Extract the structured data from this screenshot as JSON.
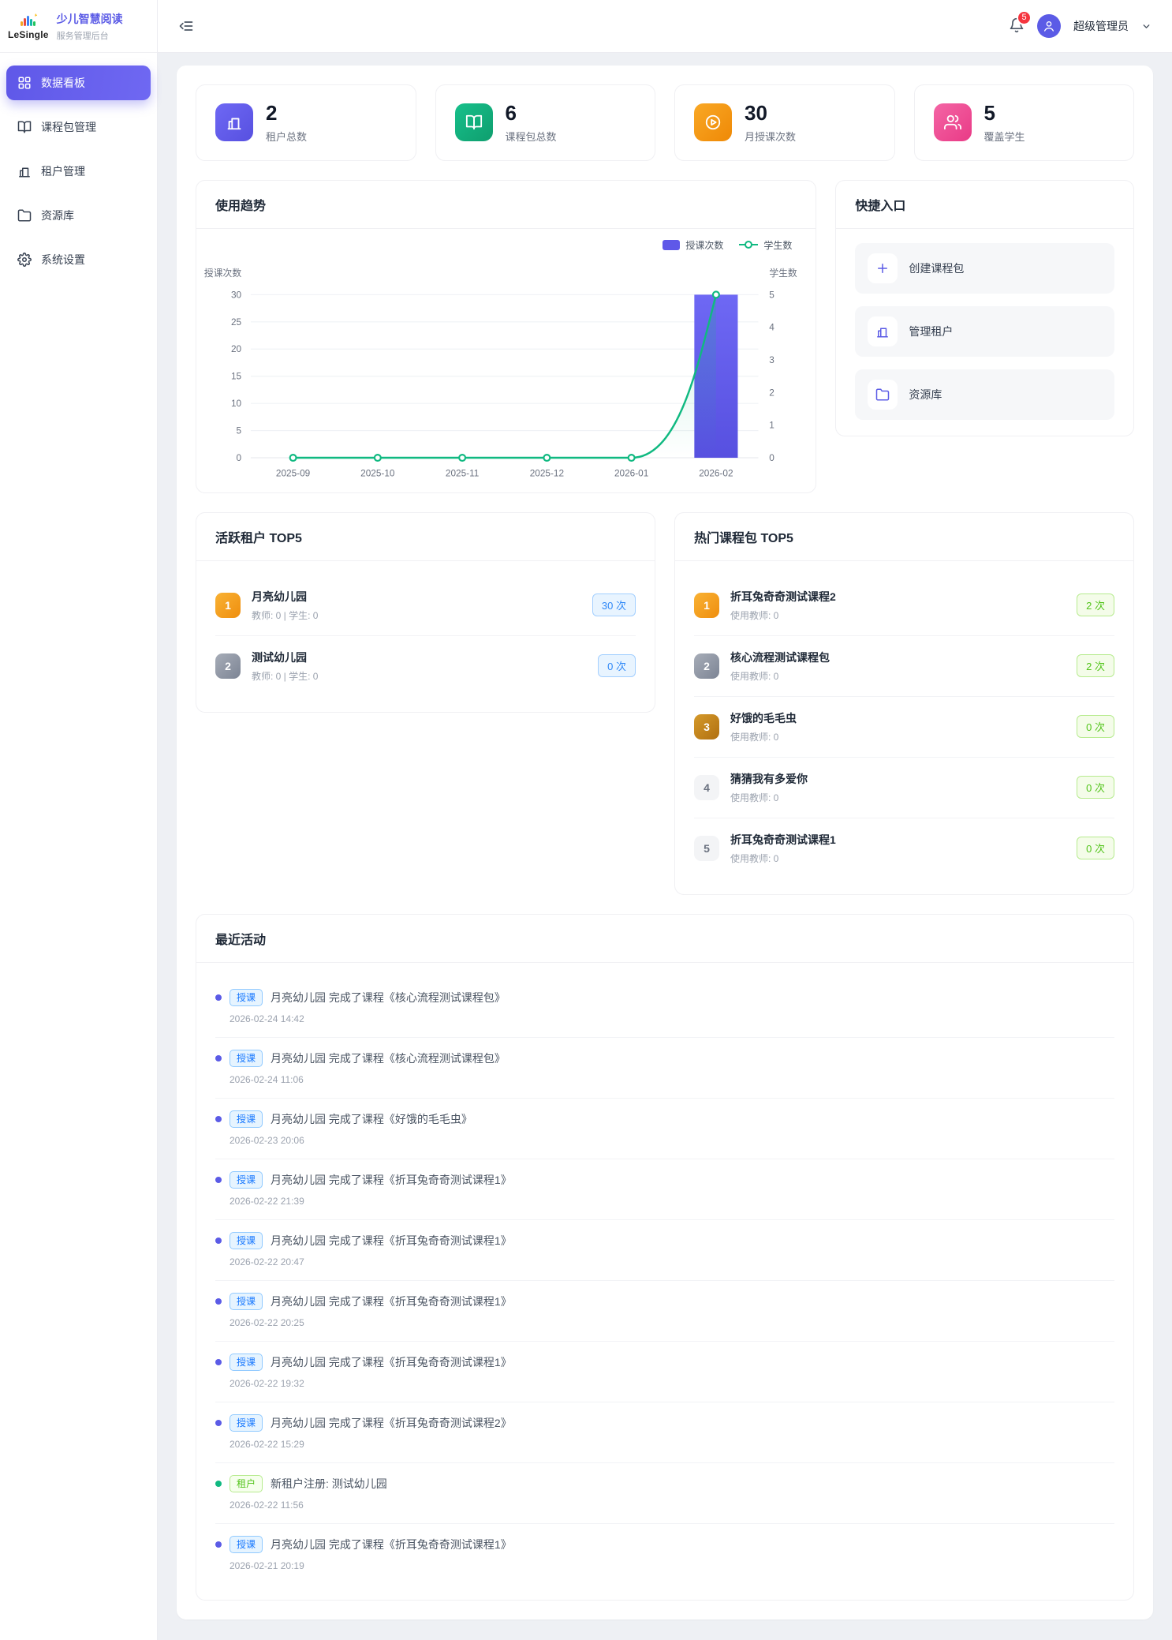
{
  "sidebar": {
    "logo_text": "LeSingle",
    "app_name": "少儿智慧阅读",
    "app_subtitle": "服务管理后台",
    "items": [
      {
        "label": "数据看板",
        "icon": "dashboard-icon",
        "active": true
      },
      {
        "label": "课程包管理",
        "icon": "book-icon",
        "active": false
      },
      {
        "label": "租户管理",
        "icon": "building-icon",
        "active": false
      },
      {
        "label": "资源库",
        "icon": "folder-icon",
        "active": false
      },
      {
        "label": "系统设置",
        "icon": "gear-icon",
        "active": false
      }
    ]
  },
  "header": {
    "notification_count": "5",
    "user_name": "超级管理员"
  },
  "stats": [
    {
      "value": "2",
      "label": "租户总数",
      "icon": "building-icon",
      "icon_class": "stat-icon stat-icon-purple"
    },
    {
      "value": "6",
      "label": "课程包总数",
      "icon": "book-icon",
      "icon_class": "stat-icon stat-icon-green"
    },
    {
      "value": "30",
      "label": "月授课次数",
      "icon": "play-icon",
      "icon_class": "stat-icon stat-icon-orange"
    },
    {
      "value": "5",
      "label": "覆盖学生",
      "icon": "users-icon",
      "icon_class": "stat-icon stat-icon-pink"
    }
  ],
  "trend": {
    "title": "使用趋势"
  },
  "chart_data": {
    "type": "bar",
    "title": "使用趋势",
    "categories": [
      "2025-09",
      "2025-10",
      "2025-11",
      "2025-12",
      "2026-01",
      "2026-02"
    ],
    "series": [
      {
        "name": "授课次数",
        "type": "bar",
        "axis": "left",
        "values": [
          0,
          0,
          0,
          0,
          0,
          30
        ],
        "color": "#5f58e8"
      },
      {
        "name": "学生数",
        "type": "line",
        "axis": "right",
        "values": [
          0,
          0,
          0,
          0,
          0,
          5
        ],
        "color": "#10b981"
      }
    ],
    "ylabel_left": "授课次数",
    "ylabel_right": "学生数",
    "ylim_left": [
      0,
      30
    ],
    "left_tick_step": 5,
    "ylim_right": [
      0,
      5
    ],
    "grid": true,
    "legend_position": "top-right"
  },
  "quick": {
    "title": "快捷入口",
    "items": [
      {
        "label": "创建课程包",
        "icon": "plus-icon"
      },
      {
        "label": "管理租户",
        "icon": "building-icon"
      },
      {
        "label": "资源库",
        "icon": "folder-icon"
      }
    ]
  },
  "active_tenants": {
    "title": "活跃租户 TOP5",
    "items": [
      {
        "rank": "1",
        "rank_class": "rank rank-gold",
        "name": "月亮幼儿园",
        "meta": "教师: 0 | 学生: 0",
        "count": "30 次",
        "pill_class": "pill pill-blue"
      },
      {
        "rank": "2",
        "rank_class": "rank rank-silver",
        "name": "测试幼儿园",
        "meta": "教师: 0 | 学生: 0",
        "count": "0 次",
        "pill_class": "pill pill-blue"
      }
    ]
  },
  "hot_courses": {
    "title": "热门课程包 TOP5",
    "items": [
      {
        "rank": "1",
        "rank_class": "rank rank-gold",
        "name": "折耳兔奇奇测试课程2",
        "meta": "使用教师: 0",
        "count": "2 次",
        "pill_class": "pill pill-green"
      },
      {
        "rank": "2",
        "rank_class": "rank rank-silver",
        "name": "核心流程测试课程包",
        "meta": "使用教师: 0",
        "count": "2 次",
        "pill_class": "pill pill-green"
      },
      {
        "rank": "3",
        "rank_class": "rank rank-bronze",
        "name": "好饿的毛毛虫",
        "meta": "使用教师: 0",
        "count": "0 次",
        "pill_class": "pill pill-green"
      },
      {
        "rank": "4",
        "rank_class": "rank rank-plain",
        "name": "猜猜我有多爱你",
        "meta": "使用教师: 0",
        "count": "0 次",
        "pill_class": "pill pill-green"
      },
      {
        "rank": "5",
        "rank_class": "rank rank-plain",
        "name": "折耳兔奇奇测试课程1",
        "meta": "使用教师: 0",
        "count": "0 次",
        "pill_class": "pill pill-green"
      }
    ]
  },
  "activities": {
    "title": "最近活动",
    "items": [
      {
        "tag": "授课",
        "tag_class": "tag tag-blue",
        "dot_class": "dot dot-purple",
        "text": "月亮幼儿园 完成了课程《核心流程测试课程包》",
        "time": "2026-02-24 14:42"
      },
      {
        "tag": "授课",
        "tag_class": "tag tag-blue",
        "dot_class": "dot dot-purple",
        "text": "月亮幼儿园 完成了课程《核心流程测试课程包》",
        "time": "2026-02-24 11:06"
      },
      {
        "tag": "授课",
        "tag_class": "tag tag-blue",
        "dot_class": "dot dot-purple",
        "text": "月亮幼儿园 完成了课程《好饿的毛毛虫》",
        "time": "2026-02-23 20:06"
      },
      {
        "tag": "授课",
        "tag_class": "tag tag-blue",
        "dot_class": "dot dot-purple",
        "text": "月亮幼儿园 完成了课程《折耳兔奇奇测试课程1》",
        "time": "2026-02-22 21:39"
      },
      {
        "tag": "授课",
        "tag_class": "tag tag-blue",
        "dot_class": "dot dot-purple",
        "text": "月亮幼儿园 完成了课程《折耳兔奇奇测试课程1》",
        "time": "2026-02-22 20:47"
      },
      {
        "tag": "授课",
        "tag_class": "tag tag-blue",
        "dot_class": "dot dot-purple",
        "text": "月亮幼儿园 完成了课程《折耳兔奇奇测试课程1》",
        "time": "2026-02-22 20:25"
      },
      {
        "tag": "授课",
        "tag_class": "tag tag-blue",
        "dot_class": "dot dot-purple",
        "text": "月亮幼儿园 完成了课程《折耳兔奇奇测试课程1》",
        "time": "2026-02-22 19:32"
      },
      {
        "tag": "授课",
        "tag_class": "tag tag-blue",
        "dot_class": "dot dot-purple",
        "text": "月亮幼儿园 完成了课程《折耳兔奇奇测试课程2》",
        "time": "2026-02-22 15:29"
      },
      {
        "tag": "租户",
        "tag_class": "tag tag-green",
        "dot_class": "dot dot-green",
        "text": "新租户注册: 测试幼儿园",
        "time": "2026-02-22 11:56"
      },
      {
        "tag": "授课",
        "tag_class": "tag tag-blue",
        "dot_class": "dot dot-purple",
        "text": "月亮幼儿园 完成了课程《折耳兔奇奇测试课程1》",
        "time": "2026-02-21 20:19"
      }
    ]
  }
}
